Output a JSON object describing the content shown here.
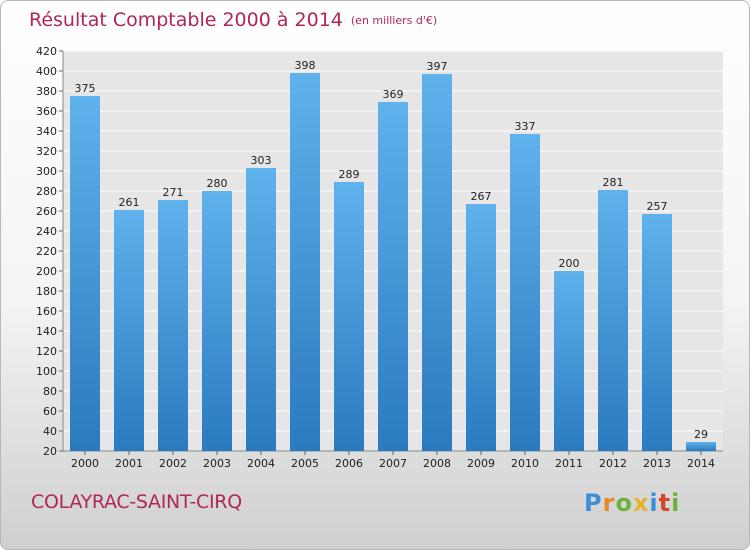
{
  "header": {
    "title": "Résultat Comptable 2000 à 2014",
    "unit": "(en milliers d'€)"
  },
  "footer": {
    "commune": "COLAYRAC-SAINT-CIRQ",
    "logo_text": "Proxiti"
  },
  "colors": {
    "title": "#b0265a",
    "bar_top": "#5fb2ec",
    "bar_bottom": "#2a7abf",
    "grid": "#ffffff",
    "plot_bg": "#e6e6e6"
  },
  "chart_data": {
    "type": "bar",
    "title": "Résultat Comptable 2000 à 2014",
    "subtitle": "(en milliers d'€)",
    "xlabel": "",
    "ylabel": "",
    "categories": [
      "2000",
      "2001",
      "2002",
      "2003",
      "2004",
      "2005",
      "2006",
      "2007",
      "2008",
      "2009",
      "2010",
      "2011",
      "2012",
      "2013",
      "2014"
    ],
    "values": [
      375,
      261,
      271,
      280,
      303,
      398,
      289,
      369,
      397,
      267,
      337,
      200,
      281,
      257,
      29
    ],
    "ylim": [
      20,
      420
    ],
    "yticks": [
      20,
      40,
      60,
      80,
      100,
      120,
      140,
      160,
      180,
      200,
      220,
      240,
      260,
      280,
      300,
      320,
      340,
      360,
      380,
      400,
      420
    ],
    "grid": true,
    "legend": "none"
  }
}
